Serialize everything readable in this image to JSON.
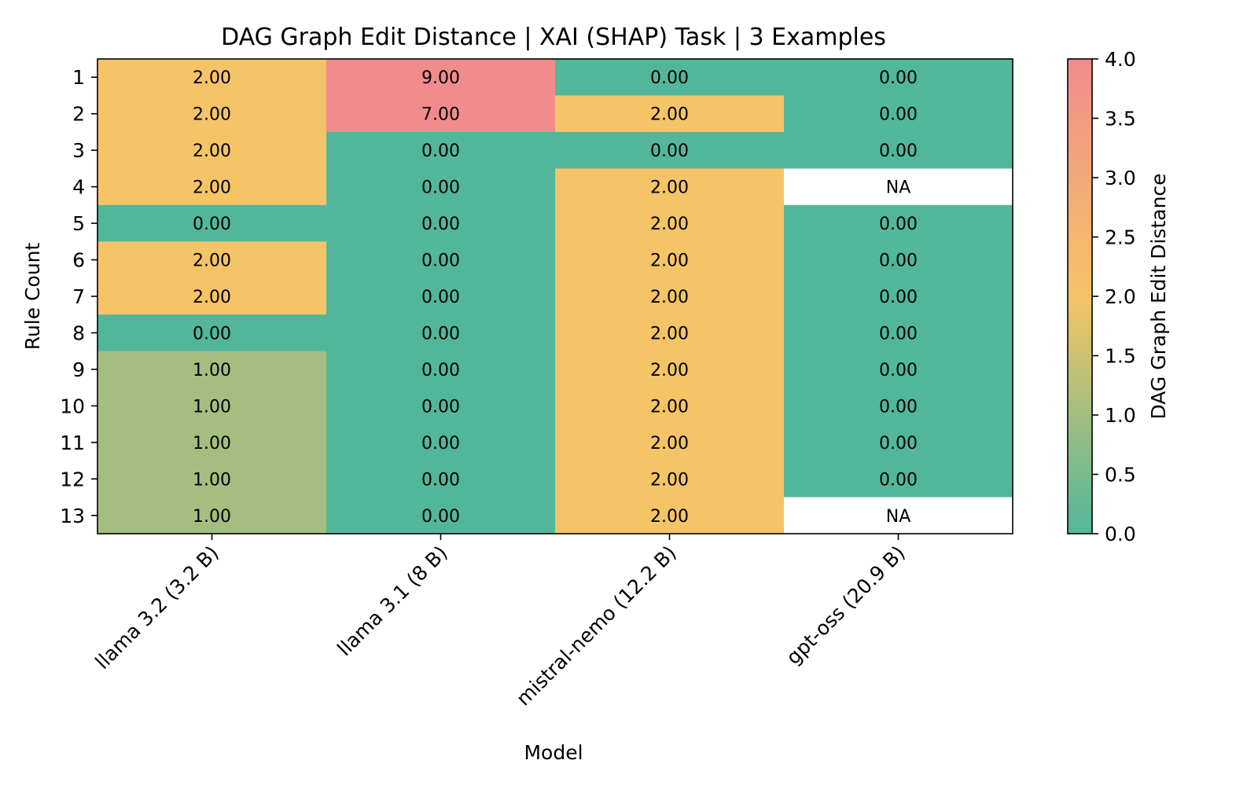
{
  "chart_data": {
    "type": "heatmap",
    "title": "DAG Graph Edit Distance | XAI (SHAP) Task | 3 Examples",
    "xlabel": "Model",
    "ylabel": "Rule Count",
    "columns": [
      "llama 3.2 (3.2 B)",
      "llama 3.1 (8 B)",
      "mistral-nemo (12.2 B)",
      "gpt-oss (20.9 B)"
    ],
    "rows": [
      "1",
      "2",
      "3",
      "4",
      "5",
      "6",
      "7",
      "8",
      "9",
      "10",
      "11",
      "12",
      "13"
    ],
    "values": [
      [
        2.0,
        9.0,
        0.0,
        0.0
      ],
      [
        2.0,
        7.0,
        2.0,
        0.0
      ],
      [
        2.0,
        0.0,
        0.0,
        0.0
      ],
      [
        2.0,
        0.0,
        2.0,
        null
      ],
      [
        0.0,
        0.0,
        2.0,
        0.0
      ],
      [
        2.0,
        0.0,
        2.0,
        0.0
      ],
      [
        2.0,
        0.0,
        2.0,
        0.0
      ],
      [
        0.0,
        0.0,
        2.0,
        0.0
      ],
      [
        1.0,
        0.0,
        2.0,
        0.0
      ],
      [
        1.0,
        0.0,
        2.0,
        0.0
      ],
      [
        1.0,
        0.0,
        2.0,
        0.0
      ],
      [
        1.0,
        0.0,
        2.0,
        0.0
      ],
      [
        1.0,
        0.0,
        2.0,
        null
      ]
    ],
    "missing_label": "NA",
    "value_format_decimals": 2,
    "colorbar": {
      "label": "DAG Graph Edit Distance",
      "range": [
        0,
        4
      ],
      "ticks": [
        "0.0",
        "0.5",
        "1.0",
        "1.5",
        "2.0",
        "2.5",
        "3.0",
        "3.5",
        "4.0"
      ],
      "colormap": [
        "#52b79a",
        "#f5c466",
        "#f08c8c"
      ]
    },
    "grid": false
  }
}
